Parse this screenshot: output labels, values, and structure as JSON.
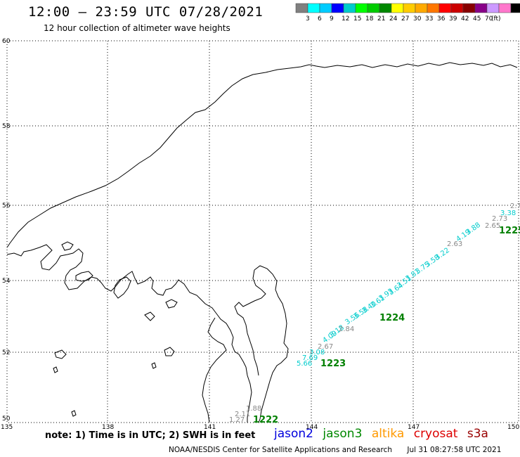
{
  "header": {
    "title": "12:00 – 23:59 UTC 07/28/2021",
    "subtitle": "12 hour collection of altimeter wave heights"
  },
  "colorbar": {
    "colors": [
      "#808080",
      "#00ffff",
      "#00ccff",
      "#0000ff",
      "#00cccc",
      "#00ff00",
      "#00cc00",
      "#008800",
      "#ffff00",
      "#ffcc00",
      "#ffaa00",
      "#ff7700",
      "#ff0000",
      "#cc0000",
      "#880000",
      "#880088",
      "#cc99ff",
      "#ff77cc",
      "#000000"
    ],
    "labels": [
      "3",
      "6",
      "9",
      "12",
      "15",
      "18",
      "21",
      "24",
      "27",
      "30",
      "33",
      "36",
      "39",
      "42",
      "45",
      "70"
    ],
    "unit": "(ft)"
  },
  "axes": {
    "lat_ticks": [
      "60",
      "58",
      "56",
      "54",
      "52",
      "50"
    ],
    "lon_ticks": [
      "135",
      "138",
      "141",
      "144",
      "147",
      "150"
    ]
  },
  "tracks": [
    {
      "pass": "1222",
      "color": "#008000",
      "readings": [
        "1.27",
        "2.11",
        "1.88"
      ]
    },
    {
      "pass": "1223",
      "color": "#008000",
      "readings": [
        "5.66",
        "7.69",
        "3.08",
        "2.67"
      ]
    },
    {
      "pass": "1224",
      "color": "#008000",
      "readings": [
        "4.09",
        "3.18",
        "2.84",
        "3.56",
        "3.58",
        "3.40",
        "3.61",
        "3.93",
        "3.64",
        "3.51",
        "3.81",
        "3.75",
        "3.58",
        "3.22",
        "2.63",
        "4.19",
        "3.88",
        "2.65",
        "2.73",
        "3.38",
        "2.7"
      ]
    },
    {
      "pass": "1225",
      "color": "#008000",
      "readings": []
    }
  ],
  "footer": {
    "note": "note: 1) Time is in UTC; 2) SWH is in feet",
    "satellites": [
      {
        "name": "jason2",
        "color": "#0000dd"
      },
      {
        "name": "jason3",
        "color": "#008800"
      },
      {
        "name": "altika",
        "color": "#ff9900"
      },
      {
        "name": "cryosat",
        "color": "#dd0000"
      },
      {
        "name": "s3a",
        "color": "#990000"
      }
    ],
    "credit": "NOAA/NESDIS Center for Satellite Applications and Research",
    "generated": "Jul 31 08:27:58 UTC 2021"
  }
}
